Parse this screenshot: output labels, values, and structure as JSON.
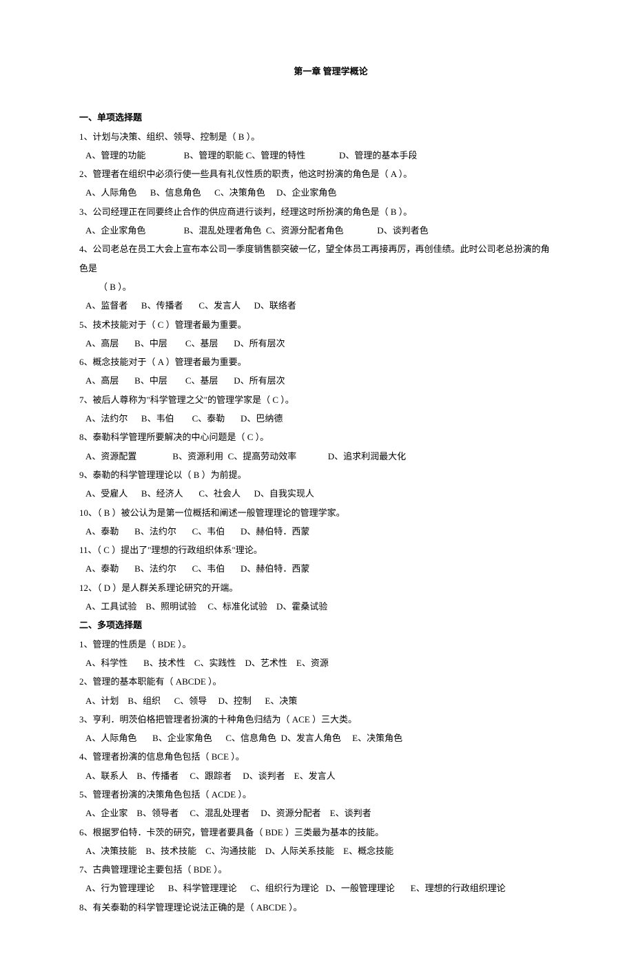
{
  "chapter": {
    "title": "第一章     管理学概论"
  },
  "section1": {
    "heading": "一、单项选择题",
    "questions": [
      {
        "num": "1、",
        "stem": "计划与决策、组织、领导、控制是（  B  ）。",
        "opts": "   A、管理的功能                 B、管理的职能 C、管理的特性               D、管理的基本手段"
      },
      {
        "num": "2、",
        "stem": "管理者在组织中必须行使一些具有礼仪性质的职责，他这时扮演的角色是（ A   ）。",
        "opts": "   A、人际角色      B、信息角色      C、决策角色     D、企业家角色"
      },
      {
        "num": "3、",
        "stem": "公司经理正在同要终止合作的供应商进行谈判，经理这时所扮演的角色是（ B   ）。",
        "opts": "   A、企业家角色                 B、混乱处理者角色  C、资源分配者角色               D、谈判者色"
      },
      {
        "num": "4、",
        "stem": "公司老总在员工大会上宣布本公司一季度销售额突破一亿，望全体员工再接再厉，再创佳绩。此时公司老总扮演的角色是",
        "cont": "（  B  ）。",
        "opts": "   A、监督者      B、传播者       C、发言人      D、联络者"
      },
      {
        "num": "5、",
        "stem": "技术技能对于（ C   ）管理者最为重要。",
        "opts": "   A、高层       B、中层        C、基层       D、所有层次"
      },
      {
        "num": "6、",
        "stem": "概念技能对于（  A  ）管理者最为重要。",
        "opts": "   A、高层       B、中层        C、基层       D、所有层次"
      },
      {
        "num": "7、",
        "stem": "被后人尊称为\"科学管理之父\"的管理学家是（   C  ）。",
        "opts": "   A、法约尔      B、韦伯        C、泰勒       D、巴纳德"
      },
      {
        "num": "8、",
        "stem": "泰勒科学管理所要解决的中心问题是（  C  ）。",
        "opts": "   A、资源配置                B、资源利用  C、提高劳动效率              D、追求利润最大化"
      },
      {
        "num": "9、",
        "stem": "泰勒的科学管理理论以（  B   ）为前提。",
        "opts": "   A、受雇人      B、经济人       C、社会人      D、自我实现人"
      },
      {
        "num": "10、",
        "stem": "（ B   ）被公认为是第一位概括和阐述一般管理理论的管理学家。",
        "opts": "   A、泰勒       B、法约尔       C、韦伯       D、赫伯特．西蒙"
      },
      {
        "num": "11、",
        "stem": "（ C   ）提出了\"理想的行政组织体系\"理论。",
        "opts": "   A、泰勒       B、法约尔       C、韦伯       D、赫伯特．西蒙"
      },
      {
        "num": "12、",
        "stem": "（ D  ）是人群关系理论研究的开端。",
        "opts": "   A、工具试验    B、照明试验     C、标准化试验    D、霍桑试验"
      }
    ]
  },
  "section2": {
    "heading": "二、多项选择题",
    "questions": [
      {
        "num": "1、",
        "stem": "管理的性质是（    BDE     ）。",
        "opts": "   A、科学性       B、技术性    C、实践性    D、艺术性    E、资源"
      },
      {
        "num": "2、",
        "stem": "管理的基本职能有（    ABCDE     ）。",
        "opts": "   A、计划    B、组织      C、领导     D、控制      E、决策"
      },
      {
        "num": "3、",
        "stem": "亨利．明茨伯格把管理者扮演的十种角色归结为（    ACE      ）三大类。",
        "opts": "   A、人际角色       B、企业家角色      C、信息角色  D、发言人角色     E、决策角色"
      },
      {
        "num": "4、",
        "stem": "管理者扮演的信息角色包括（   BCE     ）。",
        "opts": "   A、联系人    B、传播者     C、跟踪者     D、谈判者    E、发言人"
      },
      {
        "num": "5、",
        "stem": "管理者扮演的决策角色包括（    ACDE     ）。",
        "opts": "   A、企业家    B、领导者     C、混乱处理者     D、资源分配者    E、谈判者"
      },
      {
        "num": "6、",
        "stem": "根据罗伯特．卡茨的研究，管理者要具备（     BDE     ）三类最为基本的技能。",
        "opts": "   A、决策技能    B、技术技能    C、沟通技能    D、人际关系技能    E、概念技能"
      },
      {
        "num": "7、",
        "stem": "古典管理理论主要包括（    BDE     ）。",
        "opts": "   A、行为管理理论      B、科学管理理论      C、组织行为理论   D、一般管理理论       E、理想的行政组织理论"
      },
      {
        "num": " 8、",
        "stem": "有关泰勒的科学管理理论说法正确的是（     ABCDE     ）。",
        "opts": ""
      }
    ]
  }
}
